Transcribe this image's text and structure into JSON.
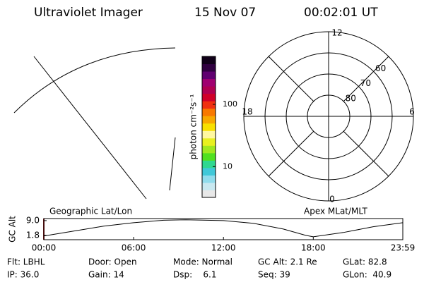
{
  "header": {
    "instrument": "Ultraviolet Imager",
    "date": "15 Nov 07",
    "time": "00:02:01 UT"
  },
  "colorbar": {
    "label": "photon cm⁻²s⁻¹",
    "log": true,
    "range": [
      3.2,
      590
    ],
    "ticks": [
      10,
      100
    ],
    "colors": [
      "#e8e8e8",
      "#c8e8f0",
      "#90dcec",
      "#40c8d8",
      "#30d890",
      "#50e020",
      "#a0e820",
      "#e8f020",
      "#fff8a0",
      "#f8e000",
      "#f8a800",
      "#f87800",
      "#f03010",
      "#d00028",
      "#b00050",
      "#a00070",
      "#600070",
      "#300040",
      "#100018"
    ]
  },
  "polar": {
    "mlt_labels": [
      "12",
      "18",
      "6",
      "0"
    ],
    "lat_labels": [
      80,
      70,
      60
    ],
    "range": [
      90,
      50
    ]
  },
  "info": [
    [
      "Flt: LBHL",
      "Door: Open",
      "Mode: Normal",
      "GC Alt: 2.1 Re",
      "GLat: 82.8"
    ],
    [
      "IP: 36.0",
      "Gain: 14",
      "Dsp:    6.1",
      "Seq: 39",
      "GLon:  40.9"
    ]
  ],
  "chart_data": {
    "type": "line",
    "ylabel": "GC Alt",
    "left_label": "Geographic Lat/Lon",
    "right_label": "Apex MLat/MLT",
    "x": [
      0,
      2,
      4,
      6,
      8,
      9.5,
      12,
      14,
      16,
      17.5,
      18,
      20,
      22,
      23.98
    ],
    "series": [
      {
        "color": "#000000",
        "values": [
          1.5,
          3.9,
          6.3,
          8.0,
          9.2,
          9.4,
          9.0,
          7.7,
          4.9,
          1.8,
          1.1,
          3.2,
          6.0,
          8.0
        ]
      }
    ],
    "xlim": [
      0,
      23.98
    ],
    "xticks": [
      {
        "value": 0,
        "label": "00:00"
      },
      {
        "value": 6,
        "label": "06:00"
      },
      {
        "value": 12,
        "label": "12:00"
      },
      {
        "value": 18,
        "label": "18:00"
      },
      {
        "value": 23.98,
        "label": "23:59"
      }
    ],
    "ylim": [
      -0.3,
      10.0
    ],
    "yticks": [
      {
        "value": 1.8,
        "label": "1.8"
      },
      {
        "value": 9.0,
        "label": "9.0"
      }
    ]
  }
}
